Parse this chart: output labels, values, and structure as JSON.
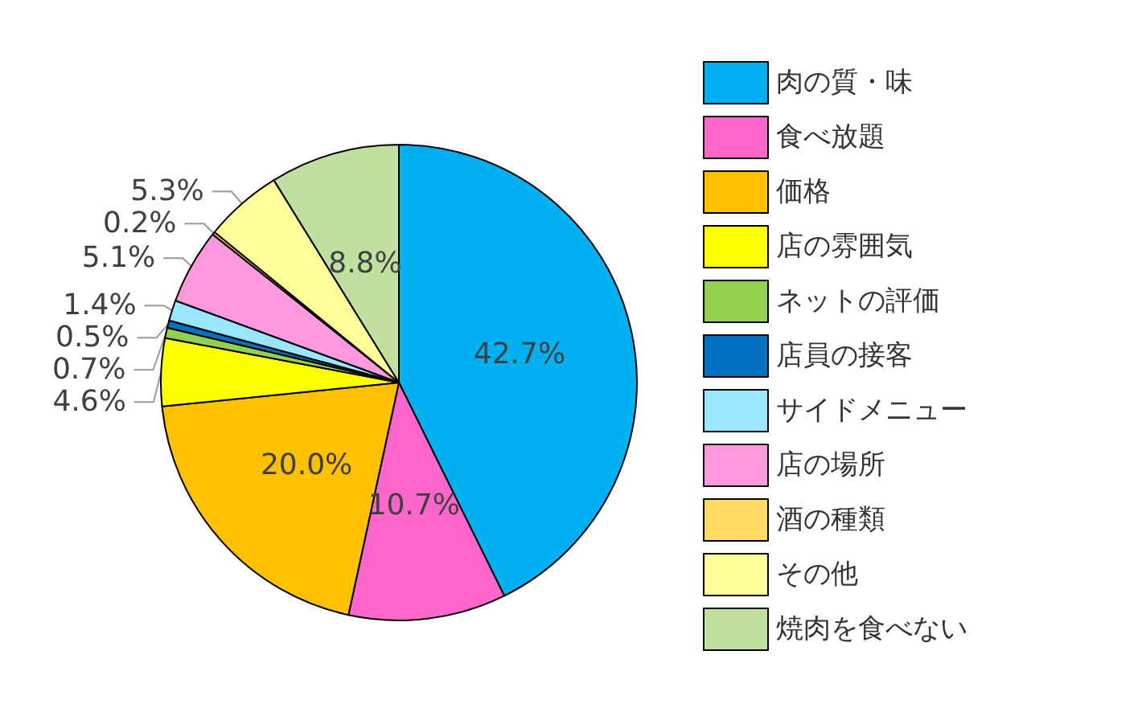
{
  "chart_data": {
    "type": "pie",
    "categories": [
      "肉の質・味",
      "食べ放題",
      "価格",
      "店の雰囲気",
      "ネットの評価",
      "店員の接客",
      "サイドメニュー",
      "店の場所",
      "酒の種類",
      "その他",
      "焼肉を食べない"
    ],
    "values": [
      42.7,
      10.7,
      20.0,
      4.6,
      0.7,
      0.5,
      1.4,
      5.1,
      0.2,
      5.3,
      8.8
    ],
    "colors": [
      "#00b0f0",
      "#ff66cc",
      "#ffc000",
      "#ffff00",
      "#92d050",
      "#0070c0",
      "#99e6ff",
      "#ff99dd",
      "#ffd966",
      "#ffff99",
      "#c0e0a0"
    ],
    "value_labels": [
      "42.7%",
      "10.7%",
      "20.0%",
      "4.6%",
      "0.7%",
      "0.5%",
      "1.4%",
      "5.1%",
      "0.2%",
      "5.3%",
      "8.8%"
    ],
    "legend": "right"
  }
}
